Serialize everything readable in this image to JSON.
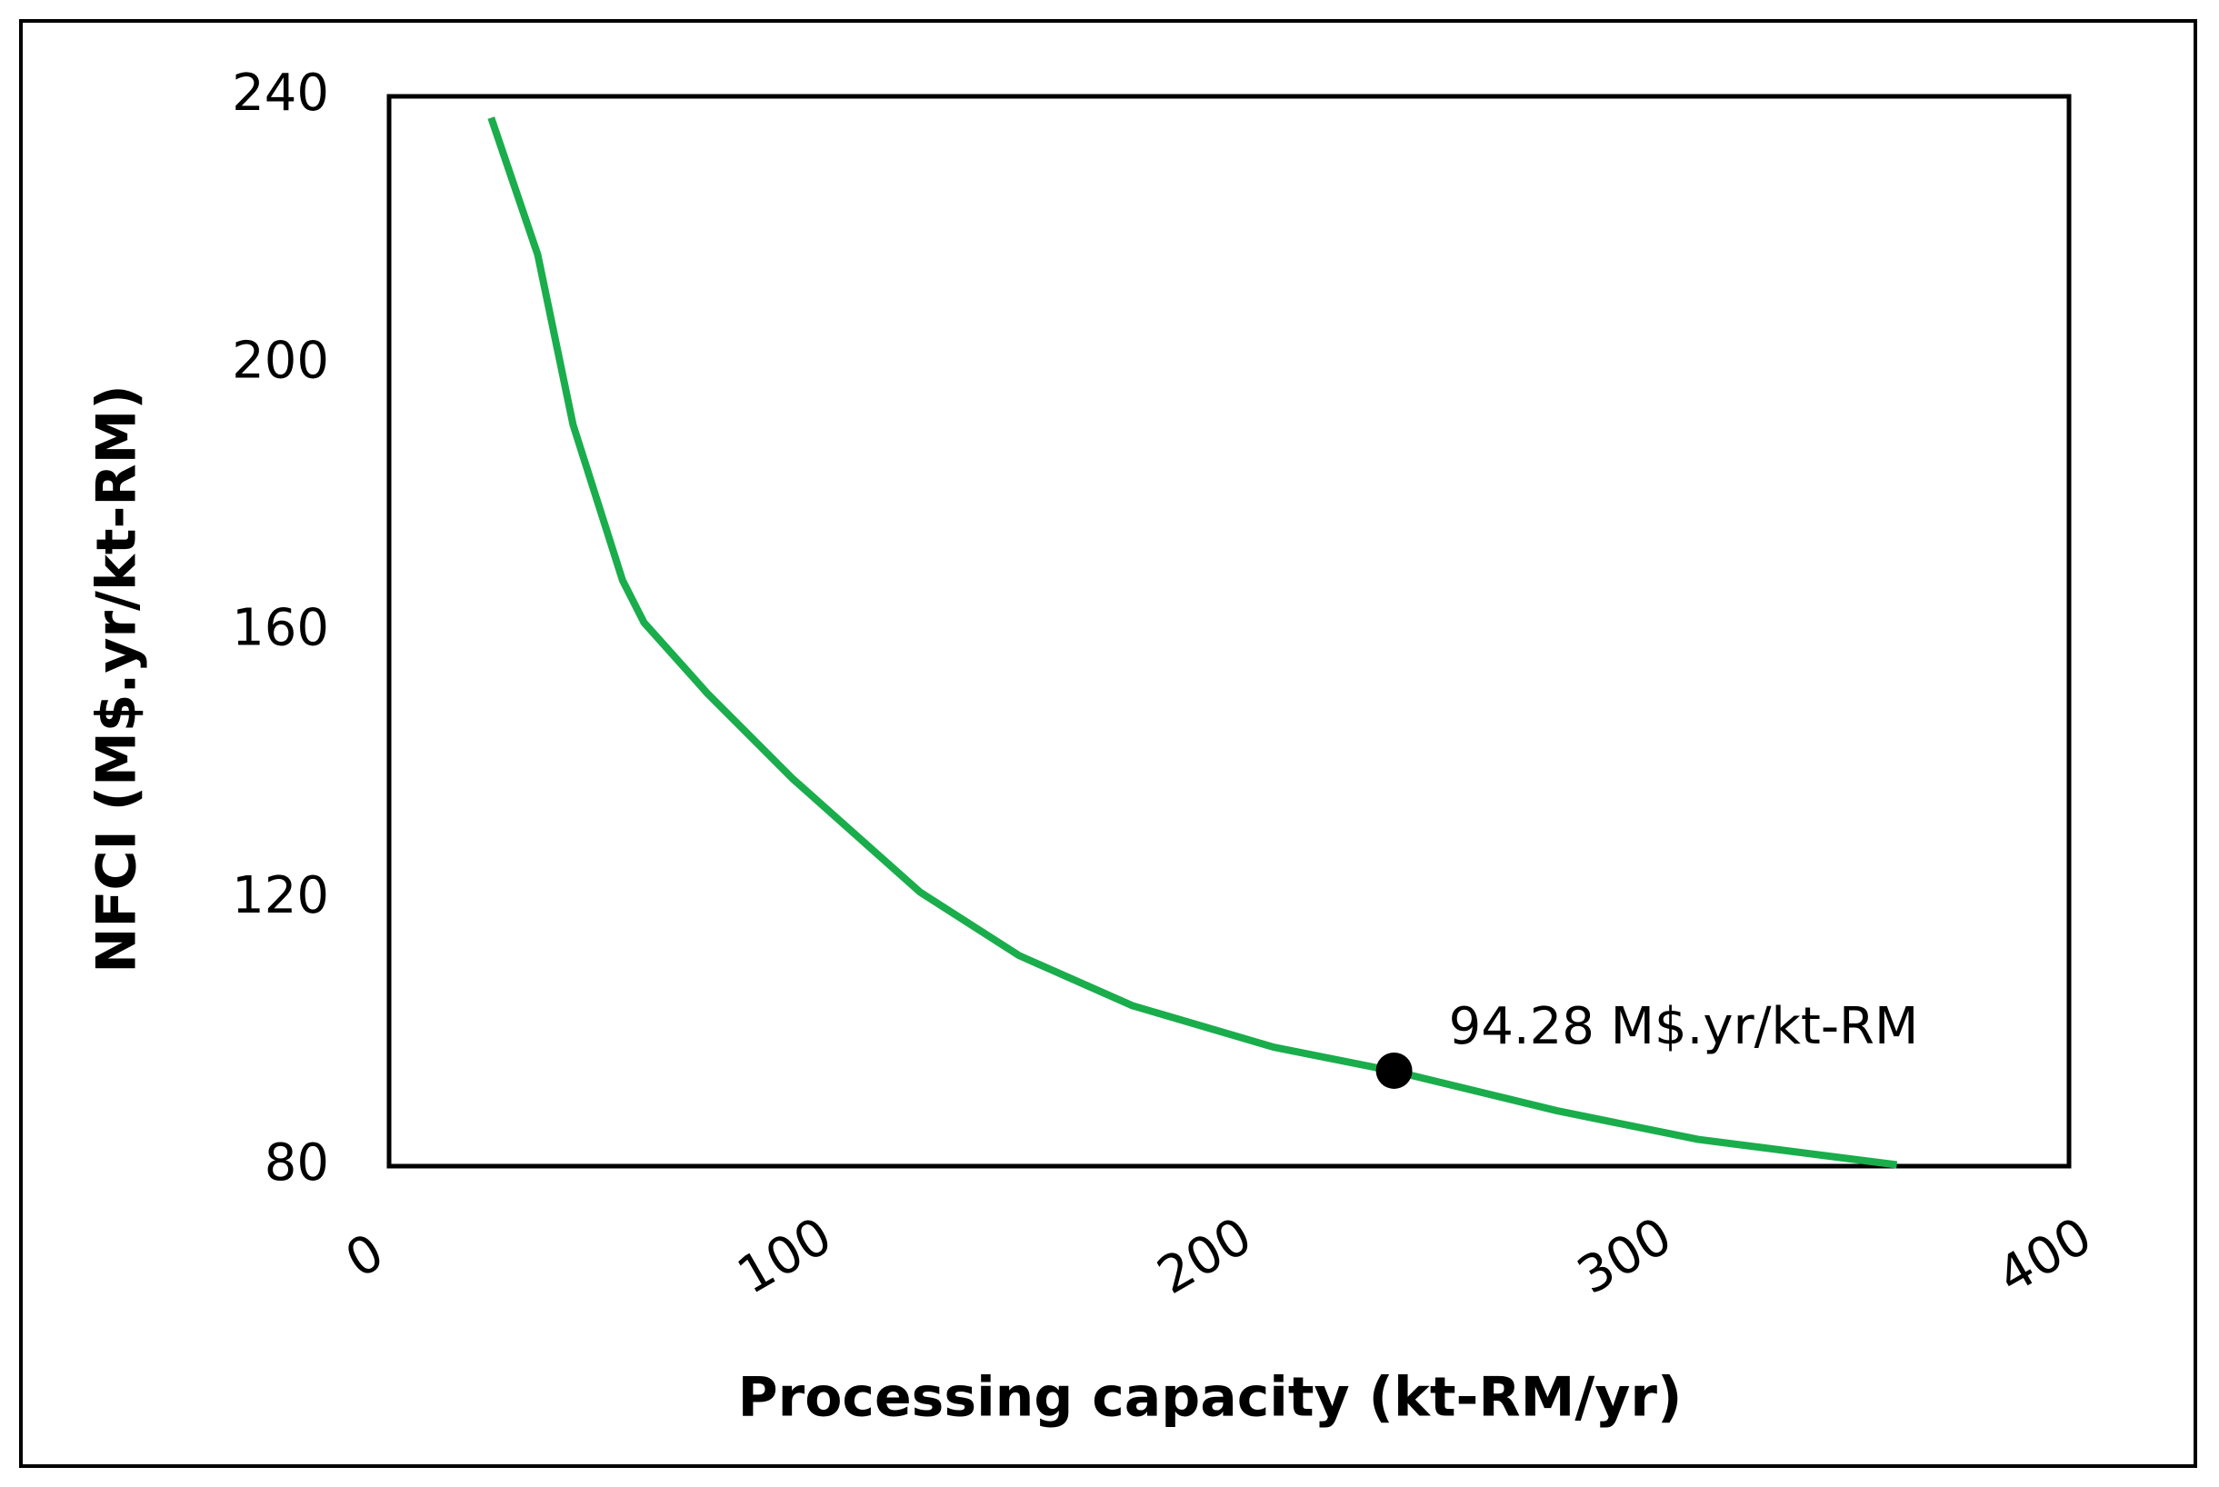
{
  "chart_data": {
    "type": "line",
    "xlabel": "Processing capacity (kt-RM/yr)",
    "ylabel": "NFCI (M$.yr/kt-RM)",
    "x": [
      24.3,
      35.4,
      43.8,
      55.6,
      60.7,
      75.8,
      96,
      126.4,
      150,
      177,
      210.6,
      239.3,
      278,
      311.7,
      359
    ],
    "series": [
      {
        "color": "#1aad4b",
        "values": [
          236.8,
          216.3,
          190.9,
          167.6,
          161.3,
          150.7,
          138,
          121,
          111.5,
          104,
          97.8,
          94.2,
          88.3,
          84,
          80.2
        ]
      }
    ],
    "points": [
      {
        "x": 239.3,
        "y": 94.28,
        "label": "94.28 M$.yr/kt-RM",
        "color": "#000000"
      }
    ],
    "xlim": [
      0,
      400
    ],
    "xticks": [
      0,
      100,
      200,
      300,
      400
    ],
    "ylim": [
      80,
      240
    ],
    "yticks": [
      80,
      120,
      160,
      200,
      240
    ]
  }
}
